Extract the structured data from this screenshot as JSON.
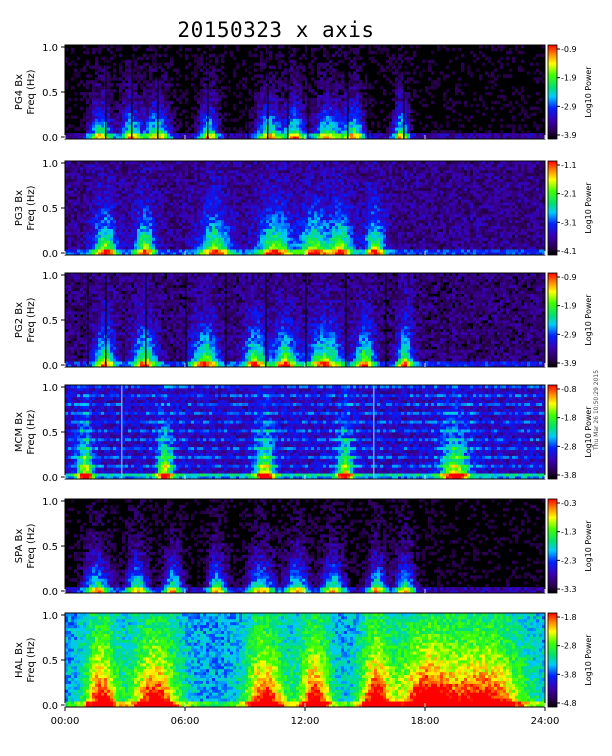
{
  "title": "20150323 x axis",
  "chart_data": {
    "type": "heatmap",
    "title": "20150323 x axis",
    "x_tick_labels": [
      "00:00",
      "06:00",
      "12:00",
      "18:00",
      "24:00"
    ],
    "x_ticks_hours": [
      0,
      6,
      12,
      18,
      24
    ],
    "xlim_hours": [
      0,
      24
    ],
    "colorbar_label": "Log10 Power",
    "panels": [
      {
        "station": "PG4 Bx",
        "ylabel": "Freq (Hz)",
        "ylim": [
          0,
          1.0
        ],
        "y_ticks": [
          "0.0",
          "0.5",
          "1.0"
        ],
        "colorbar_ticks": [
          "-0.9",
          "-1.9",
          "-2.9",
          "-3.9"
        ],
        "colorbar_range": [
          -3.9,
          -0.9
        ]
      },
      {
        "station": "PG3 Bx",
        "ylabel": "Freq (Hz)",
        "ylim": [
          0,
          1.0
        ],
        "y_ticks": [
          "0.0",
          "0.5",
          "1.0"
        ],
        "colorbar_ticks": [
          "-1.1",
          "-2.1",
          "-3.1",
          "-4.1"
        ],
        "colorbar_range": [
          -4.1,
          -1.1
        ]
      },
      {
        "station": "PG2 Bx",
        "ylabel": "Freq (Hz)",
        "ylim": [
          0,
          1.0
        ],
        "y_ticks": [
          "0.0",
          "0.5",
          "1.0"
        ],
        "colorbar_ticks": [
          "-0.9",
          "-1.9",
          "-2.9",
          "-3.9"
        ],
        "colorbar_range": [
          -3.9,
          -0.9
        ]
      },
      {
        "station": "MCM Bx",
        "ylabel": "Freq (Hz)",
        "ylim": [
          0,
          1.0
        ],
        "y_ticks": [
          "0.0",
          "0.5",
          "1.0"
        ],
        "colorbar_ticks": [
          "-0.8",
          "-1.8",
          "-2.8",
          "-3.8"
        ],
        "colorbar_range": [
          -3.8,
          -0.8
        ]
      },
      {
        "station": "SPA Bx",
        "ylabel": "Freq (Hz)",
        "ylim": [
          0,
          1.0
        ],
        "y_ticks": [
          "0.0",
          "0.5",
          "1.0"
        ],
        "colorbar_ticks": [
          "-0.3",
          "-1.3",
          "-2.3",
          "-3.3"
        ],
        "colorbar_range": [
          -3.3,
          -0.3
        ]
      },
      {
        "station": "HAL Bx",
        "ylabel": "Freq (Hz)",
        "ylim": [
          0,
          1.0
        ],
        "y_ticks": [
          "0.0",
          "0.5",
          "1.0"
        ],
        "colorbar_ticks": [
          "-1.8",
          "-2.8",
          "-3.8",
          "-4.8"
        ],
        "colorbar_range": [
          -4.8,
          -1.8
        ]
      }
    ]
  },
  "side_note": "Thu Mar 26 10:50:29 2015"
}
